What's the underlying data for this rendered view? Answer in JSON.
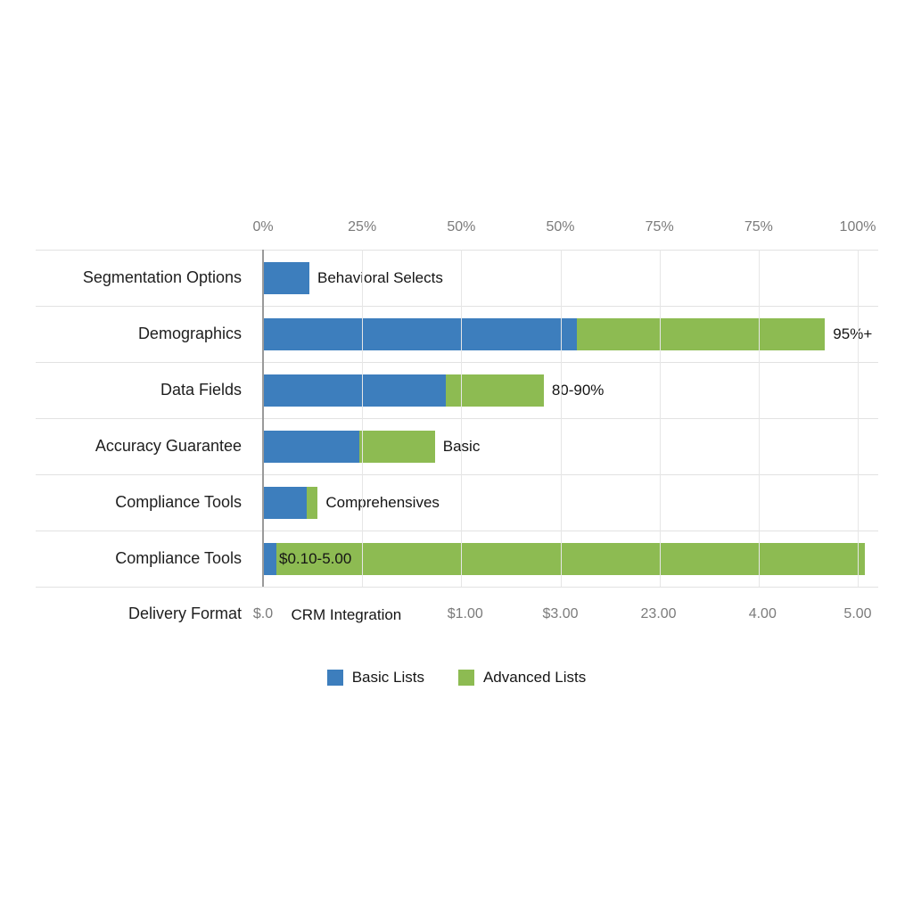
{
  "chart_data": {
    "type": "bar",
    "orientation": "horizontal",
    "stacked": true,
    "title": "",
    "xlabel": "",
    "ylabel": "",
    "grid": true,
    "legend_position": "bottom",
    "colors": {
      "basic": "#3d7ebd",
      "advanced": "#8dbb52"
    },
    "legend": [
      {
        "name": "Basic Lists",
        "color_key": "basic"
      },
      {
        "name": "Advanced Lists",
        "color_key": "advanced"
      }
    ],
    "top_axis_ticks": [
      "0%",
      "25%",
      "50%",
      "50%",
      "75%",
      "75%",
      "100%"
    ],
    "bottom_axis": {
      "category_label": "Delivery Format",
      "ticks": [
        {
          "label": "$.0",
          "pos": 0,
          "dark": false
        },
        {
          "label": "CRM Integration",
          "pos": 14,
          "dark": true
        },
        {
          "label": "$1.00",
          "pos": 34,
          "dark": false
        },
        {
          "label": "$3.00",
          "pos": 50,
          "dark": false
        },
        {
          "label": "23.00",
          "pos": 66.5,
          "dark": false
        },
        {
          "label": "4.00",
          "pos": 84,
          "dark": false
        },
        {
          "label": "5.00",
          "pos": 100,
          "dark": false
        }
      ]
    },
    "rows": [
      {
        "category": "Segmentation Options",
        "basic": 7.8,
        "advanced": 0,
        "value_label": "Behavioral Selects",
        "label_inside": false
      },
      {
        "category": "Demographics",
        "basic": 52.8,
        "advanced": 41.7,
        "value_label": "95%+",
        "label_inside": false
      },
      {
        "category": "Data Fields",
        "basic": 30.7,
        "advanced": 16.5,
        "value_label": "80-90%",
        "label_inside": false
      },
      {
        "category": "Accuracy Guarantee",
        "basic": 16.2,
        "advanced": 12.7,
        "value_label": "Basic",
        "label_inside": false
      },
      {
        "category": "Compliance Tools",
        "basic": 7.3,
        "advanced": 1.9,
        "value_label": "Comprehensives",
        "label_inside": false
      },
      {
        "category": "Compliance Tools",
        "basic": 2.2,
        "advanced": 99.0,
        "value_label": "$0.10-5.00",
        "label_inside": true
      }
    ]
  }
}
